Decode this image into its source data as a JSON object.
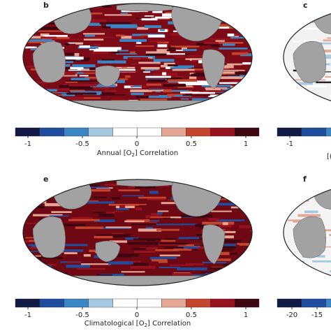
{
  "panels": [
    {
      "label": "b",
      "caption_pre": "Annual [O",
      "caption_sub": "2",
      "caption_post": "] Correlation"
    },
    {
      "label": "c"
    },
    {
      "label": "e",
      "caption_pre": "Climatological [O",
      "caption_sub": "2",
      "caption_post": "] Correlation"
    },
    {
      "label": "f"
    }
  ],
  "colorbar": {
    "colors": [
      "#101a45",
      "#1f4d9e",
      "#3a86c2",
      "#a6c8de",
      "#ffffff",
      "#ffffff",
      "#e4a796",
      "#c4452e",
      "#95121e",
      "#3d0610"
    ],
    "ticks": [
      "-1",
      "-0.5",
      "0",
      "0.5",
      "1"
    ]
  },
  "right_colorbar_top": {
    "ticks": [
      "-1"
    ],
    "caption": "[("
  },
  "right_colorbar_bottom": {
    "ticks": [
      "-20",
      "-15"
    ]
  }
}
